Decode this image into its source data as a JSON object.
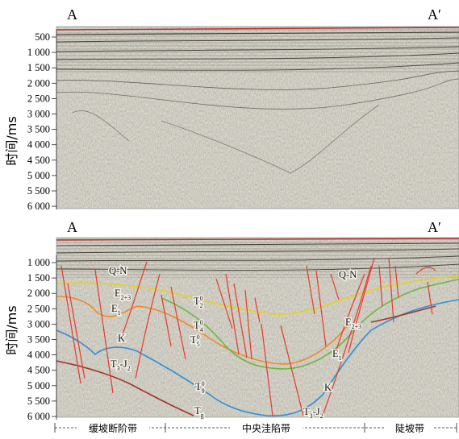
{
  "top_panel": {
    "label_left": "A",
    "label_right": "A′",
    "axis_title": "时间/ms",
    "ticks": [
      "500",
      "1 000",
      "1 500",
      "2 000",
      "2 500",
      "3 000",
      "3 500",
      "4 000",
      "4 500",
      "5 000",
      "5 500",
      "6 000"
    ]
  },
  "bottom_panel": {
    "label_left": "A",
    "label_right": "A′",
    "axis_title": "时间/ms",
    "ticks": [
      "1 000",
      "1 500",
      "2 000",
      "2 500",
      "3 000",
      "3 500",
      "4 000",
      "4 500",
      "5 000",
      "5 500",
      "6 000"
    ],
    "annotations": [
      {
        "id": "qn-left",
        "base": "Q-N"
      },
      {
        "id": "qn-right",
        "base": "Q-N"
      },
      {
        "id": "e23-left",
        "base": "E",
        "sub": "2+3"
      },
      {
        "id": "e1-left",
        "base": "E",
        "sub": "1"
      },
      {
        "id": "k-left",
        "base": "K"
      },
      {
        "id": "t3j2-left",
        "base": "T",
        "sub": "3",
        "mid": "-J",
        "sub2": "2"
      },
      {
        "id": "t02",
        "base": "T",
        "sup": "0",
        "sub": "2"
      },
      {
        "id": "t04",
        "base": "T",
        "sup": "0",
        "sub": "4"
      },
      {
        "id": "t05",
        "base": "T",
        "sup": "0",
        "sub": "5"
      },
      {
        "id": "t09",
        "base": "T",
        "sup": "0",
        "sub": "9"
      },
      {
        "id": "tg",
        "base": "T",
        "sub": "g"
      },
      {
        "id": "e23-right",
        "base": "E",
        "sub": "2+3"
      },
      {
        "id": "e1-right",
        "base": "E",
        "sub": "1"
      },
      {
        "id": "k-right",
        "base": "K"
      },
      {
        "id": "t3j2-right",
        "base": "T",
        "sub": "3",
        "mid": "-J",
        "sub2": "2"
      }
    ]
  },
  "zones": [
    "缓坡断阶带",
    "中央洼陷带",
    "陡坡带"
  ],
  "colors": {
    "horizon_yellow": "#e7d21a",
    "horizon_orange": "#ef8a24",
    "horizon_green": "#69b83f",
    "horizon_blue": "#2f8fd6",
    "horizon_brown": "#a3332a",
    "fault_red": "#e63a2a",
    "seismic_bg": "#d9d6cc"
  }
}
